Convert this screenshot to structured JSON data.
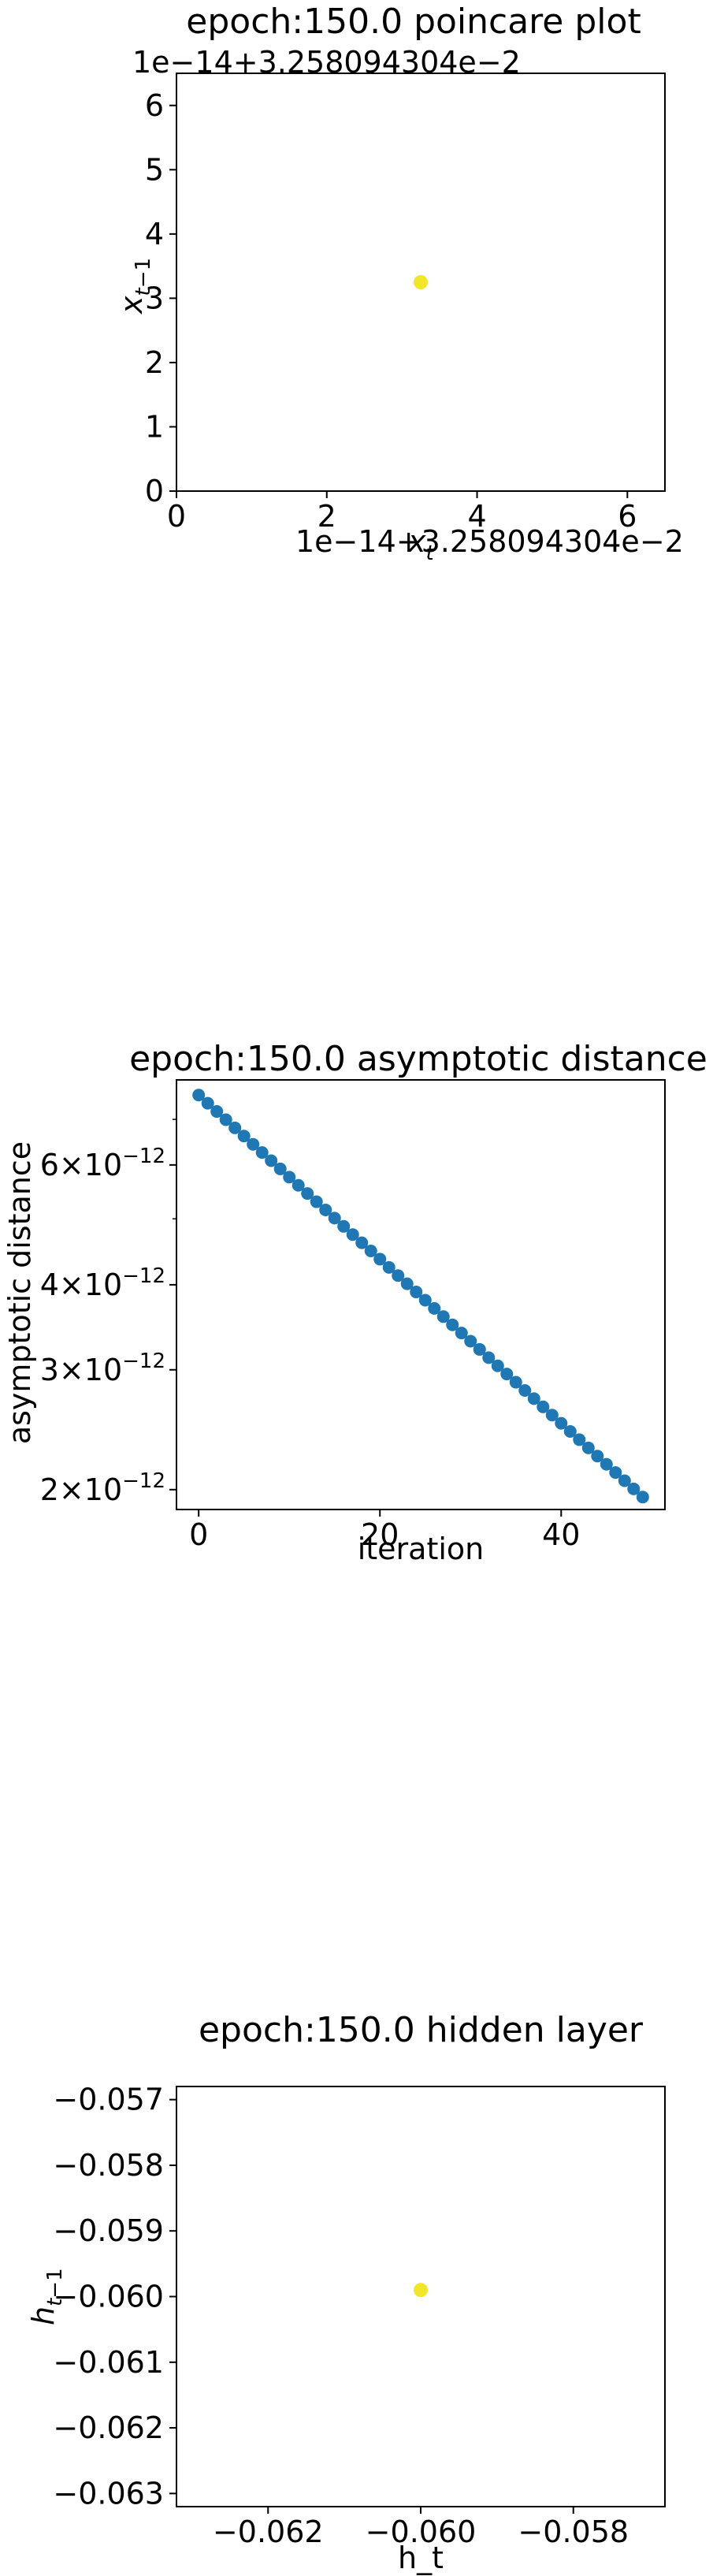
{
  "chart_data": [
    {
      "type": "scatter",
      "title": "epoch:150.0 poincare plot",
      "xlabel": "x_t",
      "ylabel": "x_{t-1}",
      "x_offset_label": "1e−14+3.258094304e−2",
      "y_offset_label": "1e−14+3.258094304e−2",
      "xlim": [
        0,
        6.5
      ],
      "ylim": [
        0,
        6.5
      ],
      "xticks": [
        0,
        2,
        4,
        6
      ],
      "yticks": [
        0,
        1,
        2,
        3,
        4,
        5,
        6
      ],
      "xtick_labels": [
        "0",
        "2",
        "4",
        "6"
      ],
      "ytick_labels": [
        "0",
        "1",
        "2",
        "3",
        "4",
        "5",
        "6"
      ],
      "points": [
        {
          "x": 3.25,
          "y": 3.25
        }
      ],
      "point_color": "#f2e52a"
    },
    {
      "type": "line",
      "title": "epoch:150.0 asymptotic distance",
      "xlabel": "iteration",
      "ylabel": "asymptotic distance",
      "yscale": "log",
      "xlim": [
        -2.45,
        51.45
      ],
      "ylim": [
        1.87e-12,
        8e-12
      ],
      "xticks": [
        0,
        20,
        40
      ],
      "xtick_labels": [
        "0",
        "20",
        "40"
      ],
      "yticks": [
        2e-12,
        3e-12,
        4e-12,
        6e-12
      ],
      "ytick_labels": [
        {
          "base": "2×10",
          "exp": "−12"
        },
        {
          "base": "3×10",
          "exp": "−12"
        },
        {
          "base": "4×10",
          "exp": "−12"
        },
        {
          "base": "6×10",
          "exp": "−12"
        }
      ],
      "y_minor_ticks": [
        5e-12,
        7e-12
      ],
      "x_start": 0,
      "x_end": 49,
      "y_start": 7.6e-12,
      "y_end": 1.95e-12,
      "point_color": "#1f77b4"
    },
    {
      "type": "scatter",
      "title": "epoch:150.0 hidden layer",
      "xlabel": "h_t",
      "ylabel": "h_{t-1}",
      "xlim": [
        -0.0632,
        -0.0568
      ],
      "ylim": [
        -0.0632,
        -0.0568
      ],
      "xticks": [
        -0.062,
        -0.06,
        -0.058
      ],
      "xtick_labels": [
        "−0.062",
        "−0.060",
        "−0.058"
      ],
      "yticks": [
        -0.063,
        -0.062,
        -0.061,
        -0.06,
        -0.059,
        -0.058,
        -0.057
      ],
      "ytick_labels": [
        "−0.063",
        "−0.062",
        "−0.061",
        "−0.060",
        "−0.059",
        "−0.058",
        "−0.057"
      ],
      "points": [
        {
          "x": -0.06,
          "y": -0.0599
        }
      ],
      "point_color": "#f2e52a"
    }
  ]
}
